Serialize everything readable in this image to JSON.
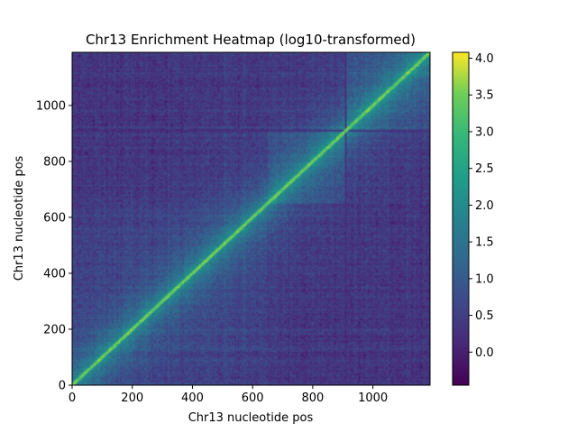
{
  "chart_data": {
    "type": "heatmap",
    "title": "Chr13 Enrichment Heatmap (log10-transformed)",
    "xlabel": "Chr13 nucleotide pos",
    "ylabel": "Chr13 nucleotide pos",
    "xlim": [
      0,
      1190
    ],
    "ylim": [
      0,
      1190
    ],
    "xticks": [
      0,
      200,
      400,
      600,
      800,
      1000
    ],
    "yticks": [
      0,
      200,
      400,
      600,
      800,
      1000
    ],
    "colormap": "viridis",
    "colorbar": {
      "range": [
        -0.45,
        4.08
      ],
      "ticks": [
        "0.0",
        "0.5",
        "1.0",
        "1.5",
        "2.0",
        "2.5",
        "3.0",
        "3.5",
        "4.0"
      ]
    },
    "features": {
      "diagonal_value": 3.0,
      "background_value": 0.25,
      "domain_boundaries": [
        650,
        910
      ],
      "low_signal_lines": [
        910
      ],
      "near_diagonal_band_width": 60
    }
  }
}
